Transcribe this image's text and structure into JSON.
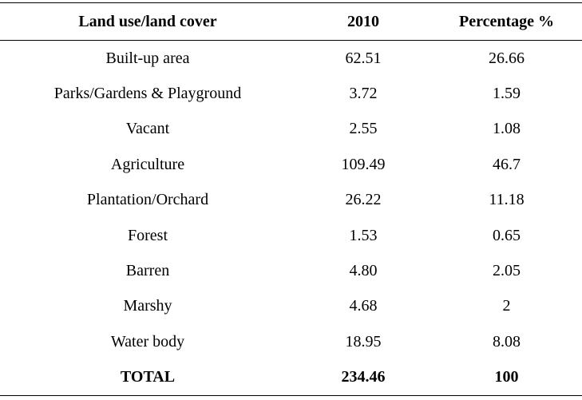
{
  "table": {
    "header": [
      "Land use/land cover",
      "2010",
      "Percentage %"
    ],
    "rows": [
      [
        "Built-up area",
        "62.51",
        "26.66"
      ],
      [
        "Parks/Gardens & Playground",
        "3.72",
        "1.59"
      ],
      [
        "Vacant",
        "2.55",
        "1.08"
      ],
      [
        "Agriculture",
        "109.49",
        "46.7"
      ],
      [
        "Plantation/Orchard",
        "26.22",
        "11.18"
      ],
      [
        "Forest",
        "1.53",
        "0.65"
      ],
      [
        "Barren",
        "4.80",
        "2.05"
      ],
      [
        "Marshy",
        "4.68",
        "2"
      ],
      [
        "Water body",
        "18.95",
        "8.08"
      ]
    ],
    "total": [
      "TOTAL",
      "234.46",
      "100"
    ]
  }
}
